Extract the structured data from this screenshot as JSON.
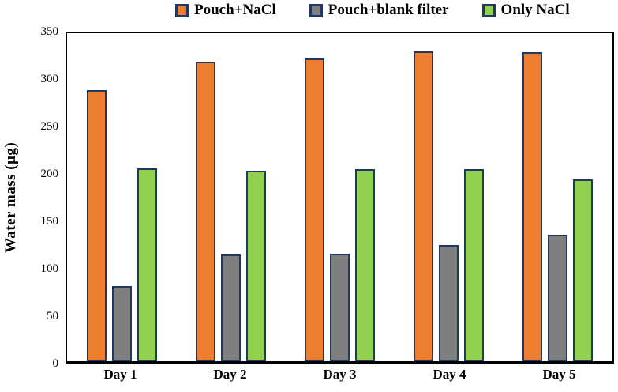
{
  "chart_data": {
    "type": "bar",
    "title": "",
    "ylabel": "Water mass (μg)",
    "xlabel": "",
    "ylim": [
      0,
      350
    ],
    "y_ticks": [
      0,
      50,
      100,
      150,
      200,
      250,
      300,
      350
    ],
    "grid": false,
    "legend_position": "top",
    "categories": [
      "Day 1",
      "Day 2",
      "Day 3",
      "Day 4",
      "Day 5"
    ],
    "series": [
      {
        "name": "Pouch+NaCl",
        "color": "#ED7D31",
        "values": [
          289,
          320,
          323,
          331,
          330
        ]
      },
      {
        "name": "Pouch+blank filter",
        "color": "#7F7F7F",
        "values": [
          80,
          114,
          115,
          124,
          135
        ]
      },
      {
        "name": "Only NaCl",
        "color": "#92D050",
        "values": [
          206,
          203,
          205,
          205,
          194
        ]
      }
    ],
    "bar_border_color": "#1F3864",
    "plot_border_color": "#000000",
    "background_color": "#FFFFFF"
  }
}
